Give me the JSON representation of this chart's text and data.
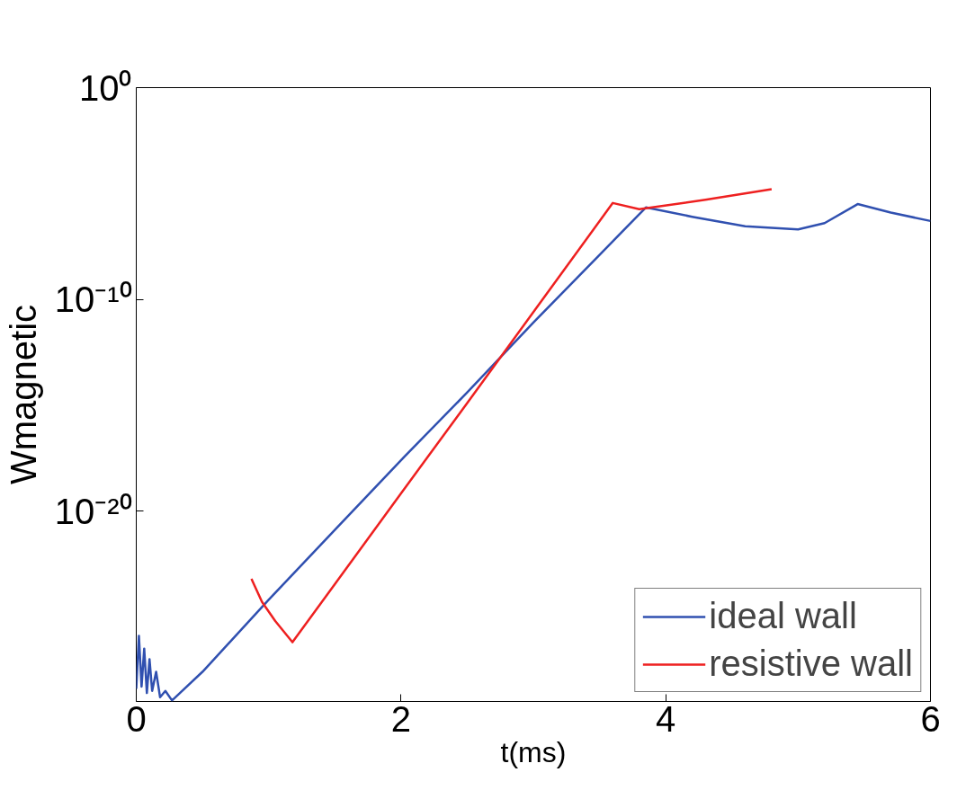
{
  "chart_data": {
    "type": "line",
    "xlabel": "t(ms)",
    "ylabel": "Wmagnetic",
    "log": "y",
    "xlim": [
      0,
      6
    ],
    "xticks": [
      0,
      2,
      4,
      6
    ],
    "ylim": [
      1e-29,
      1
    ],
    "yticks": [
      {
        "value": 1,
        "label": "10⁰"
      },
      {
        "value": 1e-10,
        "label": "10⁻¹⁰"
      },
      {
        "value": 1e-20,
        "label": "10⁻²⁰"
      }
    ],
    "grid": false,
    "legend": "bottom right",
    "line_style": "solid",
    "marker": "none",
    "series": [
      {
        "name": "ideal wall",
        "color": "#3050b0",
        "x": [
          0,
          0.02,
          0.04,
          0.06,
          0.08,
          0.1,
          0.12,
          0.15,
          0.18,
          0.22,
          0.27,
          0.5,
          1.0,
          1.5,
          2.0,
          2.5,
          3.0,
          3.5,
          3.85,
          4.2,
          4.6,
          5.0,
          5.2,
          5.45,
          5.7,
          6.0
        ],
        "values": [
          3.98e-29,
          1.26e-26,
          5.01e-29,
          3.16e-27,
          2.51e-29,
          1e-27,
          3.16e-29,
          2.51e-28,
          1.58e-29,
          3.16e-29,
          1.12e-29,
          2.51e-28,
          6.31e-25,
          1.26e-21,
          2.51e-18,
          3.98e-15,
          7.94e-12,
          1.26e-08,
          2.19e-06,
          7.94e-07,
          2.82e-07,
          2e-07,
          3.98e-07,
          3.16e-06,
          1.26e-06,
          5.01e-07
        ]
      },
      {
        "name": "resistive wall",
        "color": "#ee2020",
        "x": [
          0.87,
          0.95,
          1.05,
          1.18,
          1.5,
          2.0,
          2.5,
          3.0,
          3.6,
          3.8,
          4.3,
          4.8
        ],
        "values": [
          6.31e-24,
          5.01e-25,
          6.31e-26,
          6.31e-27,
          3.47e-24,
          6.76e-20,
          1.26e-15,
          2.51e-11,
          3.55e-06,
          1.82e-06,
          5.01e-06,
          1.58e-05
        ]
      }
    ]
  }
}
